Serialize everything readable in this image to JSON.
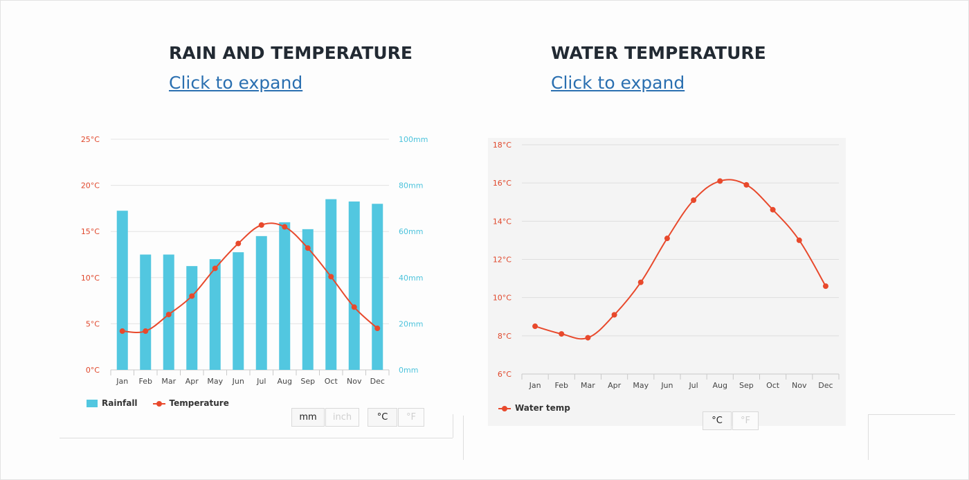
{
  "left": {
    "title": "RAIN AND TEMPERATURE",
    "link": "Click to expand",
    "legend": {
      "bar": "Rainfall",
      "line": "Temperature"
    },
    "units": {
      "mm": "mm",
      "inch": "inch",
      "c": "°C",
      "f": "°F"
    }
  },
  "right": {
    "title": "WATER TEMPERATURE",
    "link": "Click to expand",
    "legend": {
      "line": "Water temp"
    },
    "units": {
      "c": "°C",
      "f": "°F"
    }
  },
  "colors": {
    "rain_bar": "#52c7e0",
    "temp_line": "#e8492c",
    "left_axis": "#e0472b",
    "right_axis": "#4cc3dc"
  },
  "chart_data": [
    {
      "type": "bar",
      "title": "RAIN AND TEMPERATURE",
      "categories": [
        "Jan",
        "Feb",
        "Mar",
        "Apr",
        "May",
        "Jun",
        "Jul",
        "Aug",
        "Sep",
        "Oct",
        "Nov",
        "Dec"
      ],
      "y_left_ticks": [
        "0°C",
        "5°C",
        "10°C",
        "15°C",
        "20°C",
        "25°C"
      ],
      "y_right_ticks": [
        "0mm",
        "20mm",
        "40mm",
        "60mm",
        "80mm",
        "100mm"
      ],
      "ylim_left": [
        0,
        25
      ],
      "ylim_right": [
        0,
        100
      ],
      "series": [
        {
          "name": "Rainfall",
          "type": "bar",
          "axis": "right",
          "values": [
            69,
            50,
            50,
            45,
            48,
            51,
            58,
            64,
            61,
            74,
            73,
            72
          ]
        },
        {
          "name": "Temperature",
          "type": "line",
          "axis": "left",
          "values": [
            4.2,
            4.2,
            6,
            8,
            11,
            13.7,
            15.7,
            15.5,
            13.2,
            10.1,
            6.8,
            4.5
          ]
        }
      ],
      "legend_position": "bottom-left",
      "grid": true
    },
    {
      "type": "line",
      "title": "WATER TEMPERATURE",
      "categories": [
        "Jan",
        "Feb",
        "Mar",
        "Apr",
        "May",
        "Jun",
        "Jul",
        "Aug",
        "Sep",
        "Oct",
        "Nov",
        "Dec"
      ],
      "y_ticks": [
        "6°C",
        "8°C",
        "10°C",
        "12°C",
        "14°C",
        "16°C",
        "18°C"
      ],
      "ylim": [
        6,
        18
      ],
      "series": [
        {
          "name": "Water temp",
          "values": [
            8.5,
            8.1,
            7.9,
            9.1,
            10.8,
            13.1,
            15.1,
            16.1,
            15.9,
            14.6,
            13.0,
            10.6
          ]
        }
      ],
      "legend_position": "bottom-left",
      "grid": true
    }
  ]
}
